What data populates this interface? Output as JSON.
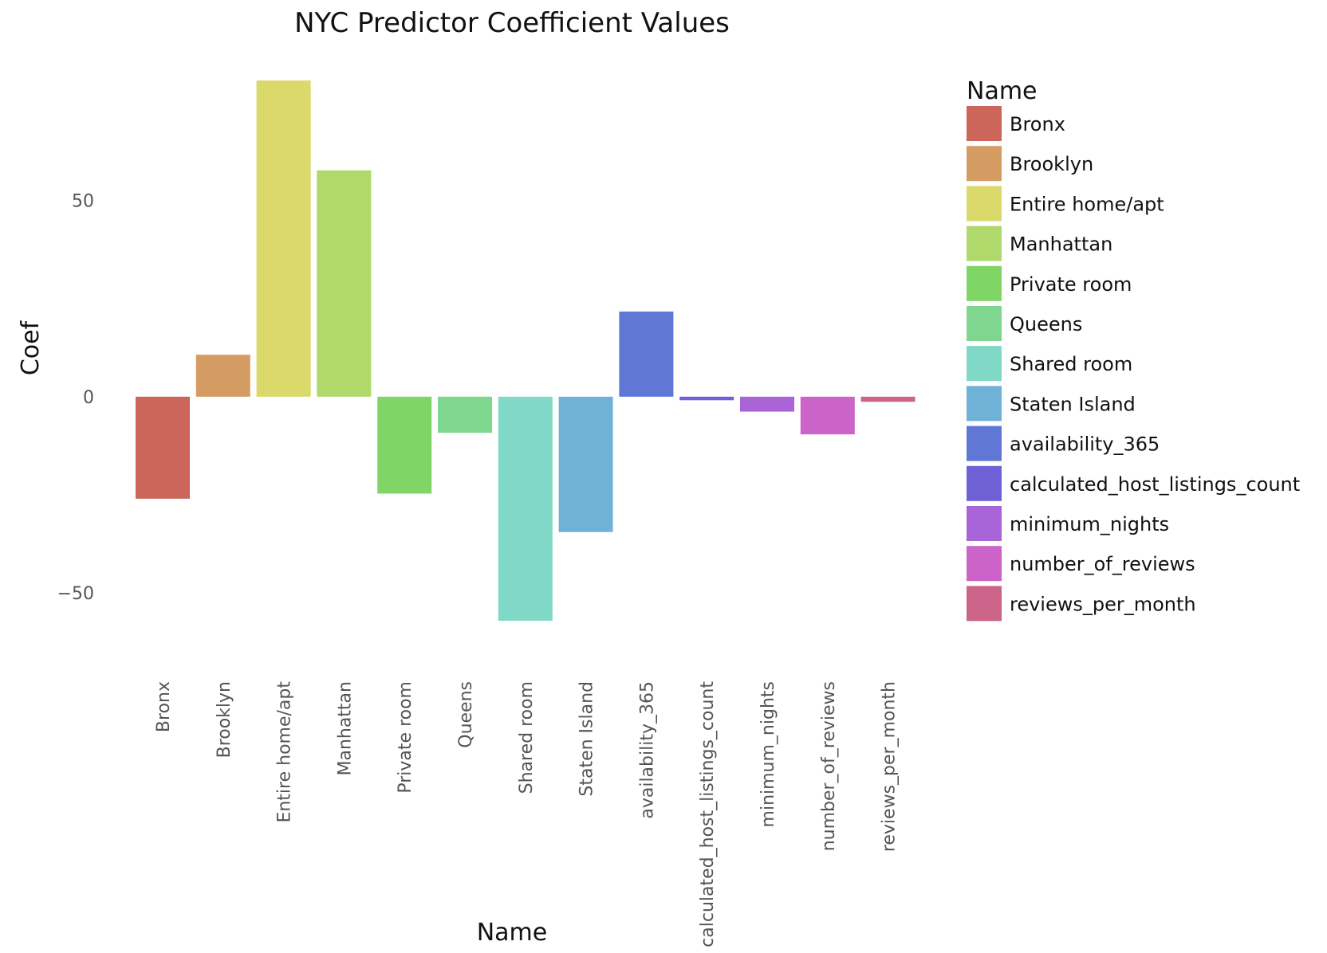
{
  "chart_data": {
    "type": "bar",
    "title": "NYC Predictor Coefficient Values",
    "xlabel": "Name",
    "ylabel": "Coef",
    "categories": [
      "Bronx",
      "Brooklyn",
      "Entire home/apt",
      "Manhattan",
      "Private room",
      "Queens",
      "Shared room",
      "Staten Island",
      "availability_365",
      "calculated_host_listings_count",
      "minimum_nights",
      "number_of_reviews",
      "reviews_per_month"
    ],
    "values": [
      -26,
      10.7,
      80.6,
      57.7,
      -24.7,
      -9.2,
      -57.1,
      -34.5,
      21.7,
      -0.9,
      -3.8,
      -9.6,
      -1.3
    ],
    "colors": [
      "#cc665a",
      "#d49c63",
      "#dad96a",
      "#afd96a",
      "#7fd666",
      "#7fd68f",
      "#7fd9c6",
      "#6fb1d7",
      "#6077d6",
      "#7060d6",
      "#a965d8",
      "#cc63c8",
      "#cc6388"
    ],
    "ylim": [
      -57.1,
      80.6
    ],
    "yticks": [
      -50,
      0,
      50
    ],
    "ytick_labels": [
      "−50",
      "0",
      "50"
    ],
    "grid": false,
    "legend": {
      "title": "Name",
      "position": "right"
    }
  }
}
